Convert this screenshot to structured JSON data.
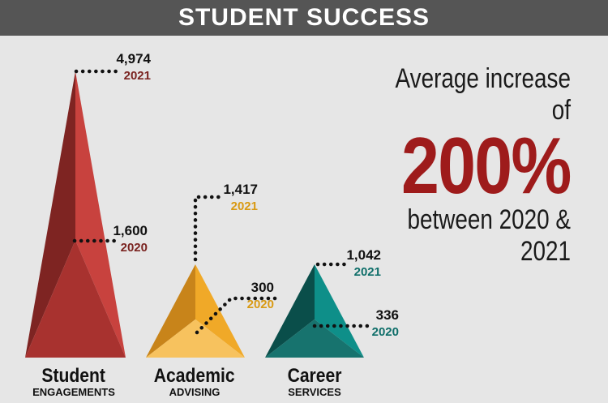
{
  "title": "STUDENT SUCCESS",
  "headline": {
    "line1": "Average increase of",
    "value": "200%",
    "line3": "between 2020 & 2021"
  },
  "colors": {
    "student": "#c8423e",
    "academic": "#f0a928",
    "career": "#0e8f89",
    "accent": "#9e1b1b"
  },
  "chart_data": {
    "type": "bar",
    "categories": [
      "Student ENGAGEMENTS",
      "Academic ADVISING",
      "Career SERVICES"
    ],
    "series": [
      {
        "name": "2021",
        "values": [
          4974,
          1417,
          1042
        ]
      },
      {
        "name": "2020",
        "values": [
          1600,
          300,
          336
        ]
      }
    ],
    "labels": [
      {
        "v2021": "4,974",
        "v2020": "1,600"
      },
      {
        "v2021": "1,417",
        "v2020": "300"
      },
      {
        "v2021": "1,042",
        "v2020": "336"
      }
    ],
    "year_2021": "2021",
    "year_2020": "2020"
  },
  "categories": [
    {
      "main": "Student",
      "sub": "ENGAGEMENTS"
    },
    {
      "main": "Academic",
      "sub": "ADVISING"
    },
    {
      "main": "Career",
      "sub": "SERVICES"
    }
  ]
}
